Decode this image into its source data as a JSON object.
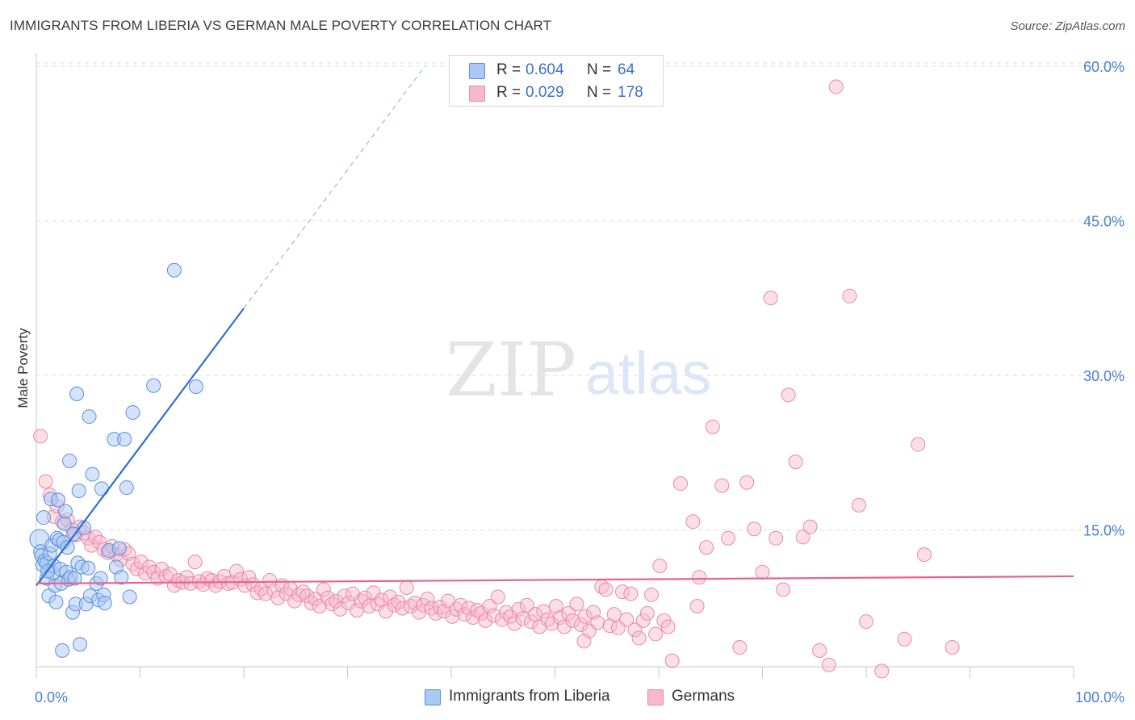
{
  "title": "IMMIGRANTS FROM LIBERIA VS GERMAN MALE POVERTY CORRELATION CHART",
  "source": "Source: ZipAtlas.com",
  "watermark": {
    "zip": "ZIP",
    "atlas": "atlas"
  },
  "colors": {
    "blue_fill": "#a9c8f3",
    "blue_stroke": "#5b8fdc",
    "blue_line": "#2f6fcf",
    "pink_fill": "#f7b8cc",
    "pink_stroke": "#e98aa8",
    "pink_line": "#e8638f",
    "grid": "#dddddd",
    "tick_text": "#4a7fd0"
  },
  "legend": {
    "rows": [
      {
        "r_label": "R =",
        "r_value": "0.604",
        "n_label": "N =",
        "n_value": "64",
        "color": "#a9c8f3"
      },
      {
        "r_label": "R =",
        "r_value": "0.029",
        "n_label": "N =",
        "n_value": "178",
        "color": "#f7b8cc"
      }
    ]
  },
  "bottom_legend": [
    "Immigrants from Liberia",
    "Germans"
  ],
  "chart_data": {
    "type": "scatter",
    "title": "IMMIGRANTS FROM LIBERIA VS GERMAN MALE POVERTY CORRELATION CHART",
    "xlabel": "",
    "ylabel": "Male Poverty",
    "xlim": [
      0,
      100
    ],
    "ylim": [
      0,
      65
    ],
    "x_tick_labels": [
      "0.0%",
      "100.0%"
    ],
    "y_ticks": [
      15,
      30,
      45,
      60
    ],
    "y_tick_labels": [
      "15.0%",
      "30.0%",
      "45.0%",
      "60.0%"
    ],
    "grid": true,
    "legend_position": "top-center",
    "series": [
      {
        "name": "Immigrants from Liberia",
        "R": 0.604,
        "N": 64,
        "trend": {
          "x0": 0,
          "y0": 9.6,
          "x1": 20,
          "y1": 36.5,
          "dashed_to_x": 37.5
        },
        "points": [
          [
            0.3,
            14.1
          ],
          [
            0.4,
            12.9
          ],
          [
            0.5,
            12.5
          ],
          [
            0.6,
            11.6
          ],
          [
            0.7,
            16.2
          ],
          [
            0.8,
            12.0
          ],
          [
            1.0,
            11.8
          ],
          [
            1.0,
            10.3
          ],
          [
            1.2,
            8.6
          ],
          [
            1.3,
            12.7
          ],
          [
            1.4,
            18.0
          ],
          [
            1.5,
            13.5
          ],
          [
            1.6,
            10.8
          ],
          [
            1.7,
            11.5
          ],
          [
            1.8,
            9.6
          ],
          [
            1.9,
            8.0
          ],
          [
            2.0,
            14.2
          ],
          [
            2.1,
            17.9
          ],
          [
            2.2,
            14.0
          ],
          [
            2.3,
            11.2
          ],
          [
            2.4,
            9.8
          ],
          [
            2.5,
            3.3
          ],
          [
            2.6,
            13.8
          ],
          [
            2.7,
            15.6
          ],
          [
            2.8,
            16.8
          ],
          [
            2.9,
            10.9
          ],
          [
            3.0,
            13.3
          ],
          [
            3.1,
            10.2
          ],
          [
            3.2,
            21.7
          ],
          [
            3.3,
            10.4
          ],
          [
            3.5,
            7.0
          ],
          [
            3.6,
            14.6
          ],
          [
            3.7,
            10.3
          ],
          [
            3.8,
            7.8
          ],
          [
            3.9,
            28.2
          ],
          [
            4.0,
            11.8
          ],
          [
            4.1,
            18.8
          ],
          [
            4.2,
            3.9
          ],
          [
            4.4,
            11.4
          ],
          [
            4.6,
            15.2
          ],
          [
            4.8,
            7.8
          ],
          [
            5.0,
            11.3
          ],
          [
            5.1,
            26.0
          ],
          [
            5.2,
            8.6
          ],
          [
            5.4,
            20.4
          ],
          [
            5.8,
            9.8
          ],
          [
            6.0,
            8.2
          ],
          [
            6.2,
            10.3
          ],
          [
            6.3,
            19.0
          ],
          [
            6.5,
            8.7
          ],
          [
            6.6,
            7.9
          ],
          [
            7.0,
            13.0
          ],
          [
            7.5,
            23.8
          ],
          [
            7.7,
            11.4
          ],
          [
            8.0,
            13.2
          ],
          [
            8.2,
            10.4
          ],
          [
            8.5,
            23.8
          ],
          [
            8.7,
            19.1
          ],
          [
            9.0,
            8.5
          ],
          [
            9.3,
            26.4
          ],
          [
            11.3,
            29.0
          ],
          [
            13.3,
            40.2
          ],
          [
            15.4,
            28.9
          ],
          [
            1.1,
            11.0
          ]
        ]
      },
      {
        "name": "Germans",
        "R": 0.029,
        "N": 178,
        "trend": {
          "x0": 0,
          "y0": 9.8,
          "x1": 100,
          "y1": 10.5
        },
        "points": [
          [
            0.4,
            24.1
          ],
          [
            0.9,
            19.7
          ],
          [
            1.3,
            18.4
          ],
          [
            1.7,
            16.3
          ],
          [
            2.0,
            17.3
          ],
          [
            2.5,
            15.8
          ],
          [
            3.0,
            16.0
          ],
          [
            3.5,
            15.0
          ],
          [
            3.8,
            14.5
          ],
          [
            4.2,
            15.3
          ],
          [
            4.6,
            14.7
          ],
          [
            5.0,
            14.2
          ],
          [
            5.3,
            13.5
          ],
          [
            5.7,
            14.3
          ],
          [
            6.1,
            13.8
          ],
          [
            6.5,
            13.1
          ],
          [
            6.9,
            12.8
          ],
          [
            7.3,
            13.4
          ],
          [
            7.7,
            12.6
          ],
          [
            8.1,
            12.1
          ],
          [
            8.5,
            13.1
          ],
          [
            8.9,
            12.7
          ],
          [
            9.3,
            11.7
          ],
          [
            9.7,
            11.2
          ],
          [
            10.1,
            11.9
          ],
          [
            10.5,
            10.8
          ],
          [
            10.9,
            11.4
          ],
          [
            11.3,
            10.9
          ],
          [
            11.7,
            10.3
          ],
          [
            12.1,
            11.2
          ],
          [
            12.5,
            10.5
          ],
          [
            12.9,
            10.7
          ],
          [
            13.3,
            9.6
          ],
          [
            13.7,
            10.1
          ],
          [
            14.1,
            9.9
          ],
          [
            14.5,
            10.4
          ],
          [
            14.9,
            9.8
          ],
          [
            15.3,
            11.9
          ],
          [
            15.7,
            10.0
          ],
          [
            16.1,
            9.7
          ],
          [
            16.5,
            10.3
          ],
          [
            16.9,
            10.1
          ],
          [
            17.3,
            9.6
          ],
          [
            17.7,
            10.0
          ],
          [
            18.1,
            10.5
          ],
          [
            18.5,
            9.8
          ],
          [
            18.9,
            9.9
          ],
          [
            19.3,
            11.0
          ],
          [
            19.7,
            10.2
          ],
          [
            20.1,
            9.6
          ],
          [
            20.5,
            10.4
          ],
          [
            20.9,
            9.7
          ],
          [
            21.3,
            8.9
          ],
          [
            21.7,
            9.3
          ],
          [
            22.1,
            8.8
          ],
          [
            22.5,
            10.1
          ],
          [
            22.9,
            9.1
          ],
          [
            23.3,
            8.4
          ],
          [
            23.7,
            9.6
          ],
          [
            24.1,
            8.8
          ],
          [
            24.5,
            9.3
          ],
          [
            24.9,
            8.1
          ],
          [
            25.3,
            8.7
          ],
          [
            25.7,
            9.0
          ],
          [
            26.1,
            8.6
          ],
          [
            26.5,
            7.9
          ],
          [
            26.9,
            8.3
          ],
          [
            27.3,
            7.6
          ],
          [
            27.7,
            9.2
          ],
          [
            28.1,
            8.4
          ],
          [
            28.5,
            7.8
          ],
          [
            28.9,
            8.1
          ],
          [
            29.3,
            7.3
          ],
          [
            29.7,
            8.6
          ],
          [
            30.1,
            7.9
          ],
          [
            30.5,
            8.8
          ],
          [
            30.9,
            7.2
          ],
          [
            31.3,
            8.1
          ],
          [
            31.7,
            8.4
          ],
          [
            32.1,
            7.6
          ],
          [
            32.5,
            8.9
          ],
          [
            32.9,
            7.8
          ],
          [
            33.3,
            8.2
          ],
          [
            33.7,
            7.1
          ],
          [
            34.1,
            8.5
          ],
          [
            34.5,
            7.7
          ],
          [
            34.9,
            8.0
          ],
          [
            35.3,
            7.4
          ],
          [
            35.7,
            9.4
          ],
          [
            36.1,
            7.6
          ],
          [
            36.5,
            7.9
          ],
          [
            36.9,
            7.0
          ],
          [
            37.3,
            7.7
          ],
          [
            37.7,
            8.3
          ],
          [
            38.1,
            7.4
          ],
          [
            38.5,
            6.9
          ],
          [
            38.9,
            7.5
          ],
          [
            39.3,
            7.1
          ],
          [
            39.7,
            8.1
          ],
          [
            40.1,
            6.6
          ],
          [
            40.5,
            7.3
          ],
          [
            40.9,
            7.7
          ],
          [
            41.3,
            6.8
          ],
          [
            41.7,
            7.4
          ],
          [
            42.1,
            6.5
          ],
          [
            42.5,
            7.2
          ],
          [
            42.9,
            6.9
          ],
          [
            43.3,
            6.2
          ],
          [
            43.7,
            7.6
          ],
          [
            44.1,
            6.7
          ],
          [
            44.5,
            8.5
          ],
          [
            44.9,
            6.3
          ],
          [
            45.3,
            7.0
          ],
          [
            45.7,
            6.6
          ],
          [
            46.1,
            5.9
          ],
          [
            46.5,
            7.3
          ],
          [
            46.9,
            6.4
          ],
          [
            47.3,
            7.7
          ],
          [
            47.7,
            6.1
          ],
          [
            48.1,
            6.8
          ],
          [
            48.5,
            5.6
          ],
          [
            48.9,
            7.1
          ],
          [
            49.3,
            6.3
          ],
          [
            49.7,
            5.9
          ],
          [
            50.1,
            7.6
          ],
          [
            50.5,
            6.5
          ],
          [
            50.9,
            5.6
          ],
          [
            51.3,
            6.9
          ],
          [
            51.7,
            6.2
          ],
          [
            52.1,
            7.8
          ],
          [
            52.5,
            5.8
          ],
          [
            52.9,
            6.6
          ],
          [
            53.3,
            5.2
          ],
          [
            53.7,
            7.0
          ],
          [
            54.1,
            6.0
          ],
          [
            54.5,
            9.5
          ],
          [
            54.9,
            9.2
          ],
          [
            55.3,
            5.7
          ],
          [
            55.7,
            6.8
          ],
          [
            56.1,
            5.5
          ],
          [
            56.5,
            9.0
          ],
          [
            56.9,
            6.3
          ],
          [
            57.3,
            8.8
          ],
          [
            57.7,
            5.3
          ],
          [
            58.1,
            4.5
          ],
          [
            58.5,
            6.2
          ],
          [
            58.9,
            6.9
          ],
          [
            59.3,
            8.7
          ],
          [
            59.7,
            4.9
          ],
          [
            60.1,
            11.5
          ],
          [
            60.5,
            6.2
          ],
          [
            60.9,
            5.6
          ],
          [
            62.1,
            19.5
          ],
          [
            63.3,
            15.8
          ],
          [
            63.9,
            10.4
          ],
          [
            64.6,
            13.3
          ],
          [
            65.2,
            25.0
          ],
          [
            66.1,
            19.3
          ],
          [
            66.7,
            14.2
          ],
          [
            67.8,
            3.6
          ],
          [
            68.5,
            19.6
          ],
          [
            69.2,
            15.1
          ],
          [
            70.0,
            10.9
          ],
          [
            70.8,
            37.5
          ],
          [
            71.3,
            14.2
          ],
          [
            72.0,
            9.2
          ],
          [
            73.2,
            21.6
          ],
          [
            73.9,
            14.3
          ],
          [
            74.6,
            15.3
          ],
          [
            75.5,
            3.3
          ],
          [
            76.4,
            1.9
          ],
          [
            77.1,
            58.0
          ],
          [
            78.4,
            37.7
          ],
          [
            79.3,
            17.4
          ],
          [
            83.7,
            4.4
          ],
          [
            85.0,
            23.3
          ],
          [
            85.6,
            12.6
          ],
          [
            88.3,
            3.6
          ],
          [
            61.3,
            2.3
          ],
          [
            72.5,
            28.1
          ],
          [
            63.7,
            7.6
          ],
          [
            80.0,
            6.1
          ],
          [
            81.5,
            1.3
          ],
          [
            52.8,
            4.2
          ]
        ]
      }
    ]
  }
}
